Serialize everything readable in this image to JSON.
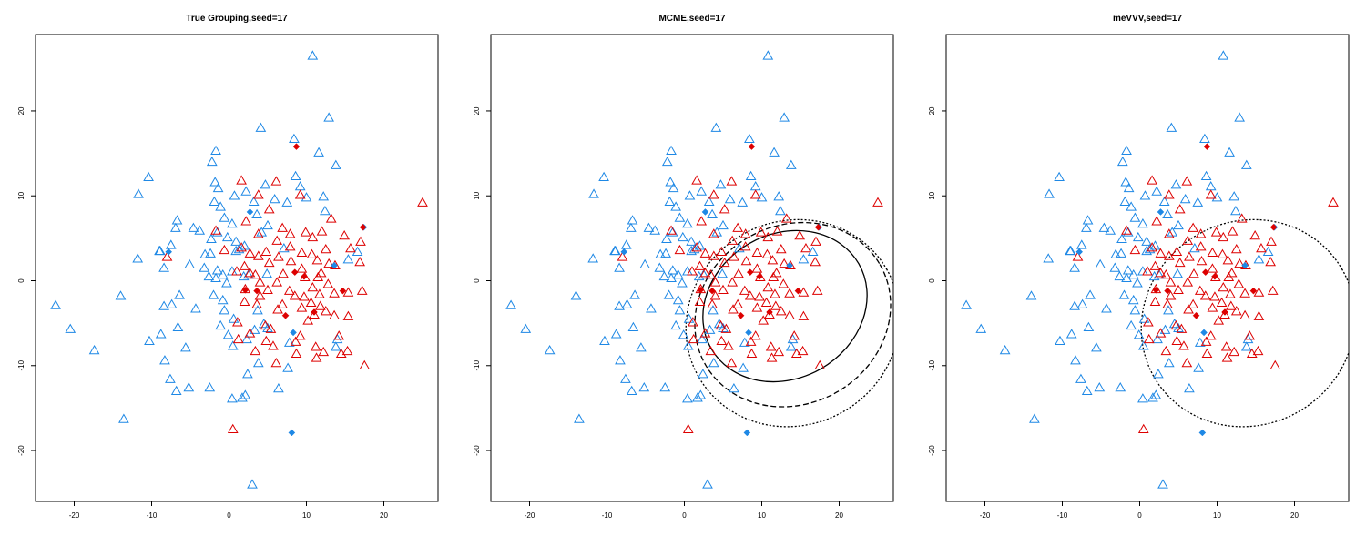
{
  "colors": {
    "blue": "#1e88e5",
    "red": "#dd0000",
    "contour": "#000000"
  },
  "marker_legend": {
    "triangle": "observation",
    "filled_diamond": "point highlighted as diamond"
  },
  "chart_data": [
    {
      "type": "scatter",
      "title": "True Grouping,seed=17",
      "xlabel": "",
      "ylabel": "",
      "xlim": [
        -25,
        27
      ],
      "ylim": [
        -26,
        29
      ],
      "xticks": [
        "-20",
        "-10",
        "0",
        "10",
        "20"
      ],
      "yticks": [
        "-20",
        "-10",
        "0",
        "10",
        "20"
      ],
      "grid": false,
      "contours": []
    },
    {
      "type": "scatter",
      "title": "MCME,seed=17",
      "xlabel": "",
      "ylabel": "",
      "xlim": [
        -25,
        27
      ],
      "ylim": [
        -26,
        29
      ],
      "xticks": [
        "-20",
        "-10",
        "0",
        "10",
        "20"
      ],
      "yticks": [
        "-20",
        "-10",
        "0",
        "10",
        "20"
      ],
      "grid": false,
      "contours": [
        {
          "style": "solid",
          "cx": 13,
          "cy": -3,
          "rx": 11,
          "ry": 8.5,
          "angle": -30
        },
        {
          "style": "dashed",
          "cx": 14,
          "cy": -4,
          "rx": 13,
          "ry": 10.5,
          "angle": -30
        },
        {
          "style": "dotted",
          "cx": 14,
          "cy": -5,
          "rx": 14,
          "ry": 12,
          "angle": -30
        }
      ]
    },
    {
      "type": "scatter",
      "title": "meVVV,seed=17",
      "xlabel": "",
      "ylabel": "",
      "xlim": [
        -25,
        27
      ],
      "ylim": [
        -26,
        29
      ],
      "xticks": [
        "-20",
        "-10",
        "0",
        "10",
        "20"
      ],
      "yticks": [
        "-20",
        "-10",
        "0",
        "10",
        "20"
      ],
      "grid": false,
      "contours": [
        {
          "style": "dotted",
          "cx": 14,
          "cy": -5,
          "rx": 14,
          "ry": 12,
          "angle": -30
        }
      ]
    }
  ],
  "points": {
    "blue_triangles": [
      [
        10.8,
        26.5
      ],
      [
        12.9,
        19.2
      ],
      [
        4.1,
        18
      ],
      [
        8.4,
        16.7
      ],
      [
        11.6,
        15.1
      ],
      [
        -1.7,
        15.3
      ],
      [
        13.8,
        13.6
      ],
      [
        -2.2,
        14
      ],
      [
        -10.4,
        12.2
      ],
      [
        -1.8,
        11.6
      ],
      [
        8.6,
        12.3
      ],
      [
        -11.7,
        10.2
      ],
      [
        9.2,
        11.1
      ],
      [
        4.7,
        11.3
      ],
      [
        -1.4,
        10.9
      ],
      [
        2.2,
        10.5
      ],
      [
        -1.9,
        9.3
      ],
      [
        0.7,
        10
      ],
      [
        5.9,
        9.6
      ],
      [
        10,
        9.8
      ],
      [
        12.2,
        9.9
      ],
      [
        7.5,
        9.2
      ],
      [
        -1.1,
        8.7
      ],
      [
        3.2,
        9.3
      ],
      [
        12.4,
        8.2
      ],
      [
        -0.6,
        7.4
      ],
      [
        3.6,
        7.8
      ],
      [
        -6.7,
        7.1
      ],
      [
        -4.6,
        6.2
      ],
      [
        0.4,
        6.7
      ],
      [
        5,
        6.5
      ],
      [
        -1.5,
        5.7
      ],
      [
        -3.8,
        5.9
      ],
      [
        -6.9,
        6.2
      ],
      [
        4.2,
        5.7
      ],
      [
        -0.2,
        5.1
      ],
      [
        -2.3,
        4.9
      ],
      [
        0.9,
        4.6
      ],
      [
        -7.5,
        4.2
      ],
      [
        -9,
        3.5
      ],
      [
        0.9,
        3.5
      ],
      [
        2,
        4.1
      ],
      [
        -3.1,
        3.1
      ],
      [
        1.3,
        3.7
      ],
      [
        7.1,
        3.8
      ],
      [
        -8.9,
        3.5
      ],
      [
        -2.4,
        3.2
      ],
      [
        -11.8,
        2.6
      ],
      [
        16.6,
        3.4
      ],
      [
        15.4,
        2.5
      ],
      [
        -5.1,
        1.9
      ],
      [
        -3.2,
        1.5
      ],
      [
        -1.5,
        1.2
      ],
      [
        0.4,
        1.1
      ],
      [
        -8.4,
        1.5
      ],
      [
        -2.6,
        0.5
      ],
      [
        -0.8,
        0.7
      ],
      [
        1.9,
        0.5
      ],
      [
        -0.3,
        -0.3
      ],
      [
        -1.7,
        0.3
      ],
      [
        2.5,
        0.7
      ],
      [
        4.9,
        0.8
      ],
      [
        -6.4,
        -1.7
      ],
      [
        -2,
        -1.7
      ],
      [
        -0.8,
        -2.3
      ],
      [
        -14,
        -1.8
      ],
      [
        -7.4,
        -2.8
      ],
      [
        -8.4,
        -3
      ],
      [
        -22.4,
        -2.9
      ],
      [
        -4.3,
        -3.3
      ],
      [
        -0.6,
        -3.5
      ],
      [
        3.7,
        -3.5
      ],
      [
        -1.1,
        -5.3
      ],
      [
        0.6,
        -4.5
      ],
      [
        4.5,
        -5.1
      ],
      [
        5,
        -5.6
      ],
      [
        -20.5,
        -5.7
      ],
      [
        -8.8,
        -6.3
      ],
      [
        -6.6,
        -5.5
      ],
      [
        -0.1,
        -6.4
      ],
      [
        2.3,
        -6.9
      ],
      [
        3.3,
        -5.8
      ],
      [
        14,
        -6.9
      ],
      [
        -10.3,
        -7.1
      ],
      [
        7.8,
        -7.3
      ],
      [
        -17.4,
        -8.2
      ],
      [
        -5.6,
        -7.9
      ],
      [
        0.5,
        -7.7
      ],
      [
        13.8,
        -7.8
      ],
      [
        -8.3,
        -9.4
      ],
      [
        3.8,
        -9.7
      ],
      [
        7.6,
        -10.3
      ],
      [
        2.4,
        -11
      ],
      [
        -7.6,
        -11.6
      ],
      [
        -5.2,
        -12.6
      ],
      [
        6.4,
        -12.7
      ],
      [
        -2.5,
        -12.6
      ],
      [
        -6.8,
        -13
      ],
      [
        2.1,
        -13.5
      ],
      [
        0.4,
        -13.9
      ],
      [
        1.7,
        -13.8
      ],
      [
        -13.6,
        -16.3
      ],
      [
        3,
        -24
      ]
    ],
    "red_triangles": [
      [
        1.6,
        11.8
      ],
      [
        6.1,
        11.7
      ],
      [
        9.2,
        10.1
      ],
      [
        3.8,
        10.1
      ],
      [
        5.2,
        8.4
      ],
      [
        13.2,
        7.3
      ],
      [
        2.2,
        7
      ],
      [
        6.9,
        6.2
      ],
      [
        9.9,
        5.7
      ],
      [
        -1.7,
        5.9
      ],
      [
        14.9,
        5.3
      ],
      [
        12,
        5.8
      ],
      [
        3.8,
        5.5
      ],
      [
        7.9,
        5.5
      ],
      [
        10.8,
        5.1
      ],
      [
        6.2,
        4.7
      ],
      [
        17,
        4.6
      ],
      [
        1.6,
        3.9
      ],
      [
        7.9,
        4
      ],
      [
        -0.6,
        3.6
      ],
      [
        4.8,
        3.4
      ],
      [
        9.4,
        3.3
      ],
      [
        12.5,
        3.7
      ],
      [
        15.7,
        3.8
      ],
      [
        2.7,
        3.2
      ],
      [
        3.8,
        2.9
      ],
      [
        6.4,
        2.8
      ],
      [
        10.7,
        3.1
      ],
      [
        11.4,
        2.4
      ],
      [
        8,
        2.3
      ],
      [
        5.2,
        2.1
      ],
      [
        12.9,
        2
      ],
      [
        16.9,
        2.2
      ],
      [
        2,
        1.7
      ],
      [
        9.4,
        1.4
      ],
      [
        13.7,
        1.8
      ],
      [
        11.9,
        0.9
      ],
      [
        1,
        1.1
      ],
      [
        2.7,
        0.9
      ],
      [
        7,
        0.8
      ],
      [
        3.4,
        0.7
      ],
      [
        9.8,
        0.4
      ],
      [
        11.5,
        0.4
      ],
      [
        4,
        -0.2
      ],
      [
        6.2,
        -0.2
      ],
      [
        12.8,
        -0.4
      ],
      [
        -8,
        2.8
      ],
      [
        2.1,
        -1
      ],
      [
        5,
        -1.1
      ],
      [
        7.8,
        -1.2
      ],
      [
        10.8,
        -0.8
      ],
      [
        15.4,
        -1.4
      ],
      [
        17.2,
        -1.2
      ],
      [
        2,
        -2.5
      ],
      [
        4,
        -1.8
      ],
      [
        8.5,
        -1.8
      ],
      [
        9.7,
        -1.9
      ],
      [
        11.7,
        -1.6
      ],
      [
        13.6,
        -1.5
      ],
      [
        3.6,
        -2.8
      ],
      [
        10.6,
        -2.6
      ],
      [
        6.9,
        -2.8
      ],
      [
        9.4,
        -3.2
      ],
      [
        11.8,
        -3
      ],
      [
        6.3,
        -3.4
      ],
      [
        12.5,
        -3.6
      ],
      [
        11,
        -4
      ],
      [
        13.6,
        -4.1
      ],
      [
        15.4,
        -4.2
      ],
      [
        1.1,
        -4.9
      ],
      [
        4.7,
        -5.3
      ],
      [
        10.2,
        -4.7
      ],
      [
        5.4,
        -5.7
      ],
      [
        2.7,
        -6.2
      ],
      [
        14.2,
        -6.5
      ],
      [
        9.2,
        -6.5
      ],
      [
        4.8,
        -7.1
      ],
      [
        1.2,
        -6.9
      ],
      [
        8.6,
        -7.2
      ],
      [
        5.7,
        -7.7
      ],
      [
        11.2,
        -7.8
      ],
      [
        12.2,
        -8.4
      ],
      [
        15.3,
        -8.3
      ],
      [
        14.5,
        -8.6
      ],
      [
        8.7,
        -8.6
      ],
      [
        3.4,
        -8.3
      ],
      [
        6.1,
        -9.7
      ],
      [
        11.3,
        -9.1
      ],
      [
        17.5,
        -10
      ],
      [
        25,
        9.2
      ],
      [
        0.5,
        -17.5
      ]
    ],
    "blue_diamonds": [
      [
        -7.8,
        3.4
      ],
      [
        2.7,
        8.1
      ],
      [
        13.6,
        1.8
      ],
      [
        8.3,
        -6.1
      ],
      [
        17.4,
        6.3
      ],
      [
        8.1,
        -17.9
      ]
    ],
    "red_diamonds": [
      [
        8.7,
        15.8
      ],
      [
        17.3,
        6.3
      ],
      [
        8.5,
        1
      ],
      [
        9.7,
        0.5
      ],
      [
        2.1,
        -1.1
      ],
      [
        3.6,
        -1.2
      ],
      [
        14.7,
        -1.2
      ],
      [
        7.3,
        -4.1
      ],
      [
        11,
        -3.7
      ]
    ]
  }
}
